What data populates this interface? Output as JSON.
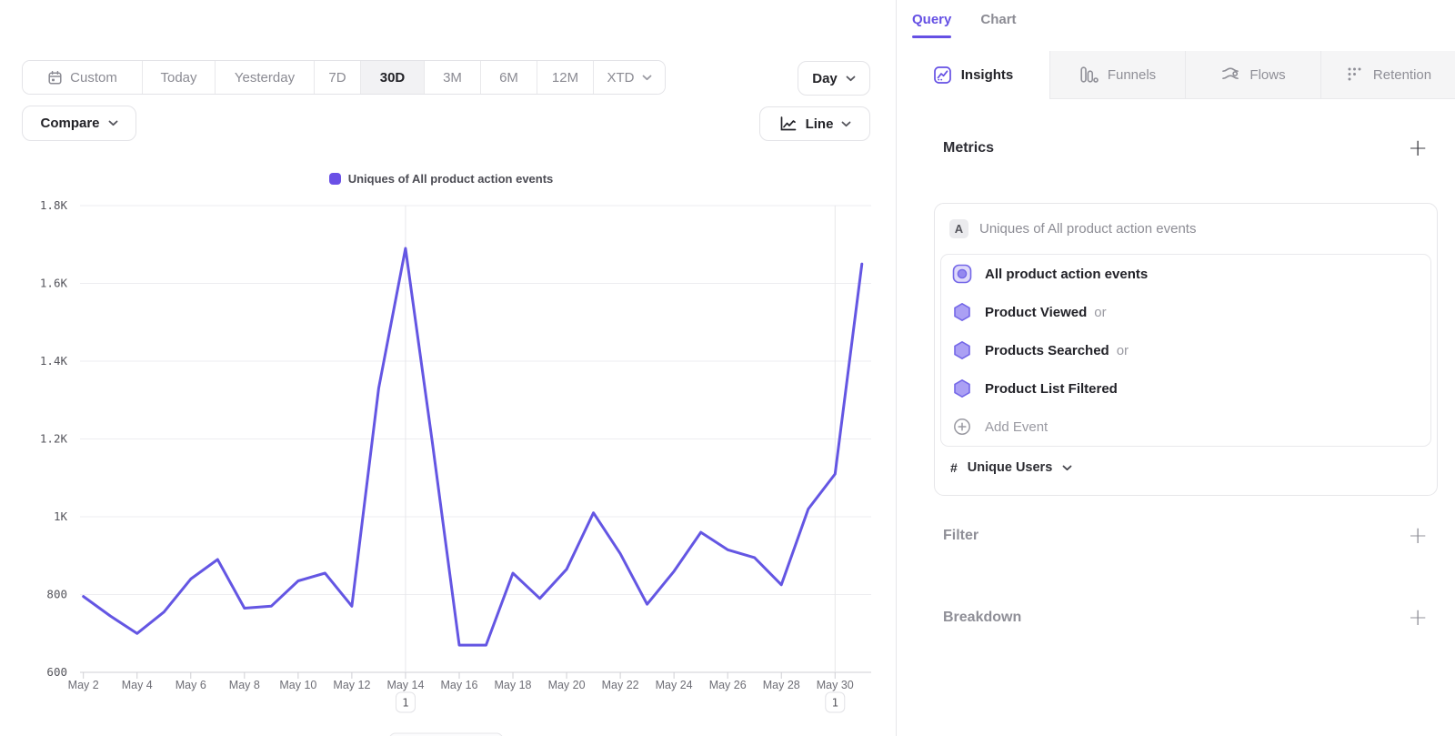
{
  "colors": {
    "accent": "#6550e4",
    "line": "#6456e3",
    "legend_swatch": "#6a50e6",
    "hex_fill": "#aba0f4",
    "hex_stroke": "#7467e8",
    "grid": "#ededf0",
    "axis": "#cfcfd4"
  },
  "toolbar": {
    "date_ranges": [
      "Custom",
      "Today",
      "Yesterday",
      "7D",
      "30D",
      "3M",
      "6M",
      "12M",
      "XTD"
    ],
    "selected_range": "30D",
    "compare_label": "Compare",
    "granularity_label": "Day",
    "chart_type_label": "Line"
  },
  "chart_data": {
    "type": "line",
    "title": "",
    "legend": "Uniques of All product action events",
    "x_labels": [
      "May 2",
      "May 3",
      "May 4",
      "May 5",
      "May 6",
      "May 7",
      "May 8",
      "May 9",
      "May 10",
      "May 11",
      "May 12",
      "May 13",
      "May 14",
      "May 15",
      "May 16",
      "May 17",
      "May 18",
      "May 19",
      "May 20",
      "May 21",
      "May 22",
      "May 23",
      "May 24",
      "May 25",
      "May 26",
      "May 27",
      "May 28",
      "May 29",
      "May 30",
      "May 31"
    ],
    "x_axis_shown_ticks": [
      "May 2",
      "May 4",
      "May 6",
      "May 8",
      "May 10",
      "May 12",
      "May 14",
      "May 16",
      "May 18",
      "May 20",
      "May 22",
      "May 24",
      "May 26",
      "May 28",
      "May 30"
    ],
    "series": [
      {
        "name": "Uniques of All product action events",
        "color": "#6456e3",
        "values": [
          795,
          745,
          700,
          755,
          840,
          890,
          765,
          770,
          835,
          855,
          770,
          1330,
          1690,
          1190,
          670,
          670,
          855,
          790,
          865,
          1010,
          905,
          775,
          860,
          960,
          915,
          895,
          825,
          1020,
          1110,
          1650
        ]
      }
    ],
    "ylim": [
      600,
      1800
    ],
    "yticks": {
      "values": [
        600,
        800,
        1000,
        1200,
        1400,
        1600,
        1800
      ],
      "labels": [
        "600",
        "800",
        "1K",
        "1.2K",
        "1.4K",
        "1.6K",
        "1.8K"
      ]
    },
    "annotations": [
      {
        "label": "1",
        "x_label": "May 14"
      },
      {
        "label": "1",
        "x_label": "May 30"
      }
    ],
    "grid": "horizontal",
    "legend_position": "top-center"
  },
  "query_panel": {
    "tabs": [
      {
        "label": "Query",
        "active": true
      },
      {
        "label": "Chart",
        "active": false
      }
    ],
    "report_tabs": [
      {
        "label": "Insights",
        "icon": "insights-icon",
        "active": true
      },
      {
        "label": "Funnels",
        "icon": "funnels-icon",
        "active": false
      },
      {
        "label": "Flows",
        "icon": "flows-icon",
        "active": false
      },
      {
        "label": "Retention",
        "icon": "retention-icon",
        "active": false
      }
    ],
    "metrics": {
      "title": "Metrics",
      "add_label": "+",
      "group_badge": "A",
      "group_title": "Uniques of All product action events",
      "events": [
        {
          "name": "All product action events",
          "suffix": "",
          "icon": "combined-events-icon"
        },
        {
          "name": "Product Viewed",
          "suffix": "or",
          "icon": "event-hexagon-icon"
        },
        {
          "name": "Products Searched",
          "suffix": "or",
          "icon": "event-hexagon-icon"
        },
        {
          "name": "Product List Filtered",
          "suffix": "",
          "icon": "event-hexagon-icon"
        }
      ],
      "add_event_label": "Add Event",
      "measurement": {
        "symbol": "#",
        "label": "Unique Users"
      }
    },
    "filter": {
      "title": "Filter",
      "add_label": "+"
    },
    "breakdown": {
      "title": "Breakdown",
      "add_label": "+"
    }
  }
}
